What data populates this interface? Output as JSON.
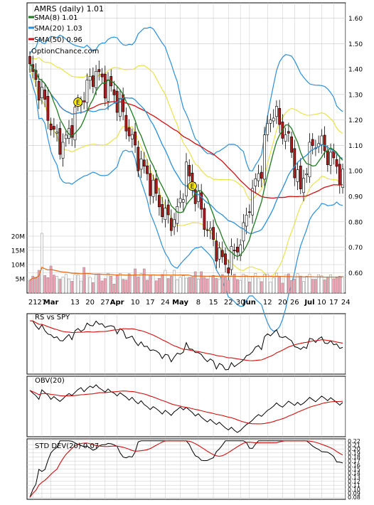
{
  "chart_data": [
    {
      "type": "candlestick",
      "title": "AMRS (daily) 1.01",
      "watermark": "OptionChance.com",
      "yticks": [
        0.6,
        0.7,
        0.8,
        0.9,
        1.0,
        1.1,
        1.2,
        1.3,
        1.4,
        1.5,
        1.6
      ],
      "ytick_labels": [
        "0.60",
        "0.70",
        "0.80",
        "0.90",
        "1.00",
        "1.10",
        "1.20",
        "1.30",
        "1.40",
        "1.50",
        "1.60"
      ],
      "ylim": [
        0.52,
        1.66
      ],
      "legend": [
        {
          "label": "SMA(8) 1.01",
          "color": "#1f7a1f"
        },
        {
          "label": "SMA(20) 1.03",
          "color": "#2b8fd8"
        },
        {
          "label": "SMA(50) 0.96",
          "color": "#d01010"
        }
      ],
      "earnings_markers": [
        {
          "index": 16,
          "price": 1.27,
          "label": "E"
        },
        {
          "index": 54,
          "price": 0.94,
          "label": "E"
        }
      ],
      "n_bars": 105
    },
    {
      "type": "bar",
      "title": "",
      "series_name": "Volume",
      "yticks": [
        5,
        10,
        15,
        20
      ],
      "ytick_labels": [
        "5M",
        "10M",
        "15M",
        "20M"
      ],
      "ylim": [
        0,
        23
      ]
    },
    {
      "type": "line",
      "title": "RS vs SPY",
      "series": [
        {
          "name": "RS vs SPY",
          "color": "#000000"
        },
        {
          "name": "",
          "color": "#d01010"
        }
      ]
    },
    {
      "type": "line",
      "title": "OBV(20)",
      "series": [
        {
          "name": "OBV(20)",
          "color": "#000000"
        },
        {
          "name": "",
          "color": "#d01010"
        }
      ]
    },
    {
      "type": "line",
      "title": "STD DEV(20) 0.07",
      "yticks": [
        0.08,
        0.09,
        0.1,
        0.11,
        0.12,
        0.13,
        0.14,
        0.15,
        0.16,
        0.17,
        0.18,
        0.19,
        0.2,
        0.21,
        0.22
      ],
      "ytick_labels": [
        "0.08",
        "0.09",
        "0.10",
        "0.11",
        "0.12",
        "0.13",
        "0.14",
        "0.15",
        "0.16",
        "0.17",
        "0.18",
        "0.19",
        "0.20",
        "0.21",
        "0.22"
      ],
      "ylim": [
        0.075,
        0.225
      ]
    }
  ],
  "x_axis": {
    "labels": [
      {
        "index": 1,
        "text": "21"
      },
      {
        "index": 4,
        "text": "27"
      },
      {
        "index": 7,
        "text": "Mar",
        "bold": true
      },
      {
        "index": 15,
        "text": "13"
      },
      {
        "index": 20,
        "text": "20"
      },
      {
        "index": 25,
        "text": "27"
      },
      {
        "index": 29,
        "text": "Apr",
        "bold": true
      },
      {
        "index": 35,
        "text": "10"
      },
      {
        "index": 40,
        "text": "17"
      },
      {
        "index": 45,
        "text": "24"
      },
      {
        "index": 50,
        "text": "May",
        "bold": true
      },
      {
        "index": 56,
        "text": "8"
      },
      {
        "index": 61,
        "text": "15"
      },
      {
        "index": 66,
        "text": "22"
      },
      {
        "index": 70,
        "text": "30"
      },
      {
        "index": 73,
        "text": "Jun",
        "bold": true
      },
      {
        "index": 79,
        "text": "12"
      },
      {
        "index": 84,
        "text": "20"
      },
      {
        "index": 88,
        "text": "26"
      },
      {
        "index": 93,
        "text": "Jul",
        "bold": true
      },
      {
        "index": 97,
        "text": "10"
      },
      {
        "index": 101,
        "text": "17"
      },
      {
        "index": 105,
        "text": "24"
      }
    ]
  },
  "colors": {
    "up": "#ffffff",
    "down": "#b01818",
    "sma8": "#1f7a1f",
    "sma20": "#2b8fd8",
    "sma50": "#d01010",
    "bb_outer": "#2b8fd8",
    "bb_yellow": "#e8e040",
    "vol_up": "#ffffff",
    "vol_down": "#f0a0b0",
    "vol_ma": "#e07020",
    "grid": "#c8c8c8"
  }
}
